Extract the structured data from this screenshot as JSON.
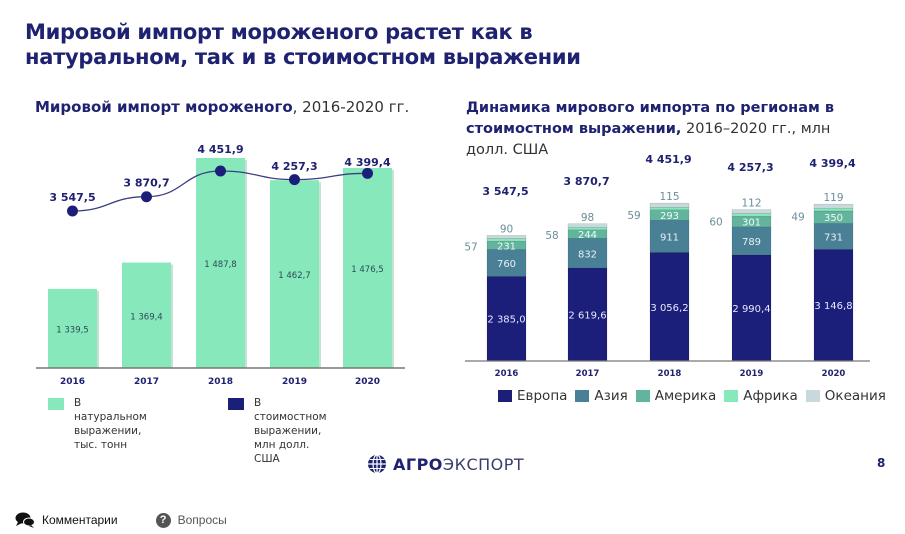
{
  "slide": {
    "title_line1": "Мировой импорт мороженого растет как в",
    "title_line2": "натуральном, так и в стоимостном выражении",
    "page_number": "8",
    "logo": {
      "bold": "АГРО",
      "light": "ЭКСПОРТ",
      "icon": "globe-icon"
    }
  },
  "footer": {
    "comments_label": "Комментарии",
    "comments_icon": "speech-bubbles-icon",
    "questions_label": "Вопросы",
    "questions_icon": "question-circle-icon"
  },
  "colors": {
    "navy": "#1c1f7a",
    "mint": "#86e8bb",
    "europe": "#1c1f7a",
    "asia": "#4a8096",
    "america": "#63b49e",
    "africa": "#86e8bb",
    "oceania": "#c9d8dd"
  },
  "chart_data": [
    {
      "type": "bar",
      "title_bold": "Мировой импорт мороженого",
      "title_light": ", 2016-2020 гг.",
      "categories": [
        "2016",
        "2017",
        "2018",
        "2019",
        "2020"
      ],
      "series": [
        {
          "name": "В натуральном выражении, тыс. тонн",
          "type": "bar",
          "values": [
            1339.5,
            1369.4,
            1487.8,
            1462.7,
            1476.5
          ],
          "labels": [
            "1 339,5",
            "1 369,4",
            "1 487,8",
            "1 462,7",
            "1 476,5"
          ]
        },
        {
          "name": "В стоимостном выражении, млн долл. США",
          "type": "line",
          "values": [
            3547.5,
            3870.7,
            4451.9,
            4257.3,
            4399.4
          ],
          "labels": [
            "3 547,5",
            "3 870,7",
            "4 451,9",
            "4 257,3",
            "4 399,4"
          ]
        }
      ],
      "legend": [
        {
          "label_line1": "В натуральном",
          "label_line2": "выражении, тыс. тонн"
        },
        {
          "label_line1": "В стоимостном выражении,",
          "label_line2": "млн долл. США"
        }
      ],
      "legend_position": "bottom"
    },
    {
      "type": "bar",
      "stacked": true,
      "title_bold": "Динамика мирового импорта по регионам в стоимостном выражении,",
      "title_light": " 2016–2020 гг., млн долл. США",
      "categories": [
        "2016",
        "2017",
        "2018",
        "2019",
        "2020"
      ],
      "totals": [
        "3 547,5",
        "3 870,7",
        "4 451,9",
        "4 257,3",
        "4 399,4"
      ],
      "series": [
        {
          "name": "Европа",
          "values": [
            2385.0,
            2619.6,
            3056.2,
            2990.4,
            3146.8
          ],
          "labels": [
            "2 385,0",
            "2 619,6",
            "3 056,2",
            "2 990,4",
            "3 146,8"
          ]
        },
        {
          "name": "Азия",
          "values": [
            760,
            832,
            911,
            789,
            731
          ],
          "labels": [
            "760",
            "832",
            "911",
            "789",
            "731"
          ]
        },
        {
          "name": "Америка",
          "values": [
            231,
            244,
            293,
            301,
            350
          ],
          "labels": [
            "231",
            "244",
            "293",
            "301",
            "350"
          ]
        },
        {
          "name": "Африка",
          "values": [
            57,
            58,
            59,
            60,
            49
          ],
          "labels": [
            "57",
            "58",
            "59",
            "60",
            "49"
          ]
        },
        {
          "name": "Океания",
          "values": [
            90,
            98,
            115,
            112,
            119
          ],
          "labels": [
            "90",
            "98",
            "115",
            "112",
            "119"
          ]
        }
      ],
      "legend_position": "bottom"
    }
  ]
}
